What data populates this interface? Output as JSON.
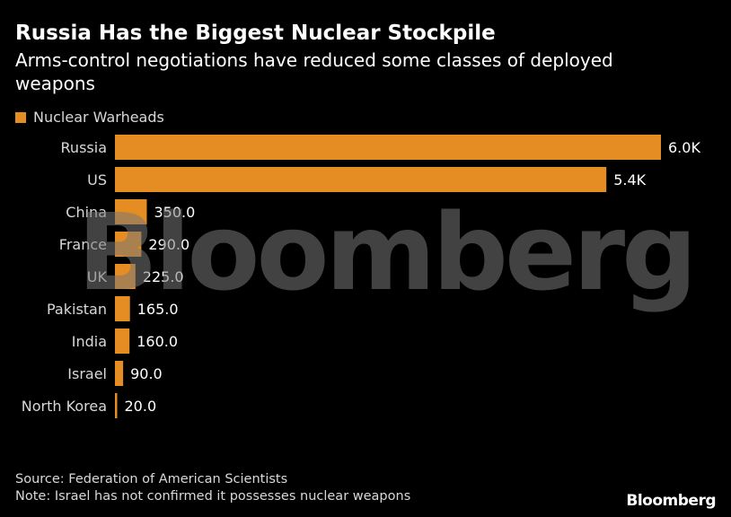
{
  "header": {
    "title": "Russia Has the Biggest Nuclear Stockpile",
    "subtitle": "Arms-control negotiations have reduced some classes of deployed weapons"
  },
  "legend": {
    "label": "Nuclear Warheads"
  },
  "watermark": "Bloomberg",
  "footer": {
    "source": "Source: Federation of American Scientists",
    "note": "Note: Israel has not confirmed it possesses nuclear weapons"
  },
  "logo": "Bloomberg",
  "colors": {
    "bar": "#e58c22",
    "background": "#000000",
    "label": "#d8d8d8"
  },
  "chart_data": {
    "type": "bar",
    "orientation": "horizontal",
    "title": "Russia Has the Biggest Nuclear Stockpile",
    "subtitle": "Arms-control negotiations have reduced some classes of deployed weapons",
    "categories": [
      "Russia",
      "US",
      "China",
      "France",
      "UK",
      "Pakistan",
      "India",
      "Israel",
      "North Korea"
    ],
    "series": [
      {
        "name": "Nuclear Warheads",
        "values": [
          6000,
          5400,
          350,
          290,
          225,
          165,
          160,
          90,
          20
        ]
      }
    ],
    "data_labels": [
      "6.0K",
      "5.4K",
      "350.0",
      "290.0",
      "225.0",
      "165.0",
      "160.0",
      "90.0",
      "20.0"
    ],
    "xlim": [
      0,
      6000
    ],
    "grid": false,
    "legend_position": "top-left"
  }
}
